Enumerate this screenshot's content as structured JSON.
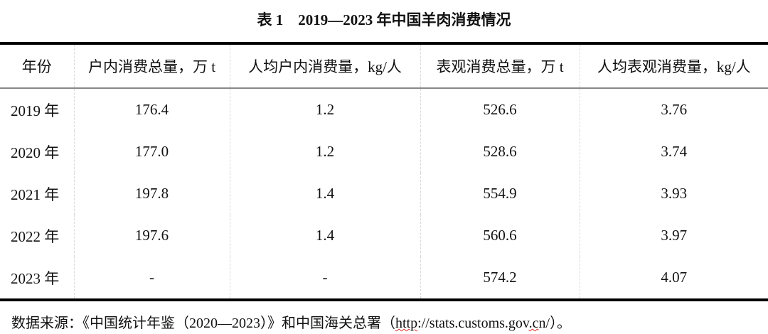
{
  "title": "表 1　2019—2023 年中国羊肉消费情况",
  "table": {
    "headers": [
      "年份",
      "户内消费总量，万 t",
      "人均户内消费量，kg/人",
      "表观消费总量，万 t",
      "人均表观消费量，kg/人"
    ],
    "rows": [
      [
        "2019 年",
        "176.4",
        "1.2",
        "526.6",
        "3.76"
      ],
      [
        "2020 年",
        "177.0",
        "1.2",
        "528.6",
        "3.74"
      ],
      [
        "2021 年",
        "197.8",
        "1.4",
        "554.9",
        "3.93"
      ],
      [
        "2022 年",
        "197.6",
        "1.4",
        "560.6",
        "3.97"
      ],
      [
        "2023 年",
        "-",
        "-",
        "574.2",
        "4.07"
      ]
    ]
  },
  "note": {
    "prefix": "数据来源：《中国统计年鉴（2020—2023）》和中国海关总署（",
    "url": "http://stats.customs.gov.cn/",
    "suffix": "）。"
  }
}
